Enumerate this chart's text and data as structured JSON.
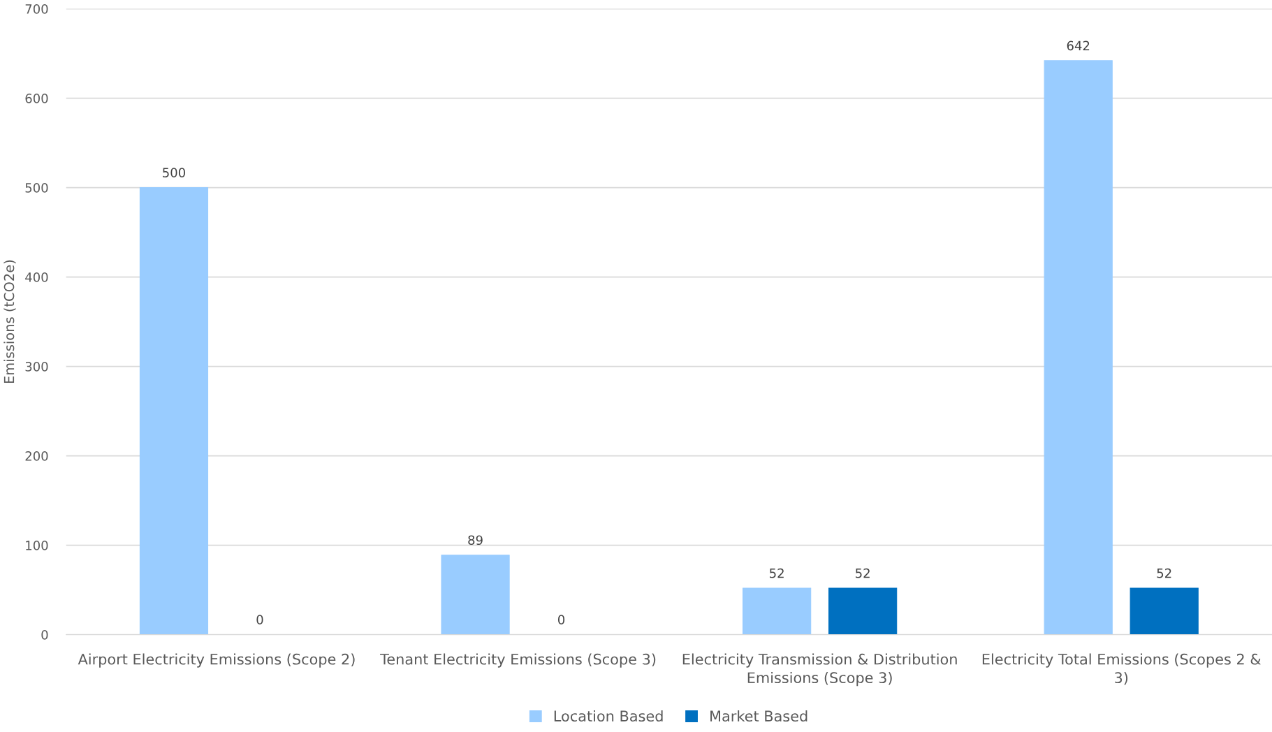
{
  "chart_data": {
    "type": "bar",
    "ylabel": "Emissions (tCO2e)",
    "categories": [
      "Airport Electricity Emissions (Scope 2)",
      "Tenant Electricity Emissions (Scope 3)",
      "Electricity Transmission & Distribution Emissions (Scope 3)",
      "Electricity Total Emissions (Scopes 2 & 3)"
    ],
    "series": [
      {
        "name": "Location Based",
        "color": "#99ccff",
        "values": [
          500,
          89,
          52,
          642
        ]
      },
      {
        "name": "Market Based",
        "color": "#0070c0",
        "values": [
          0,
          0,
          52,
          52
        ]
      }
    ],
    "ylim": [
      0,
      700
    ],
    "yticks": [
      0,
      100,
      200,
      300,
      400,
      500,
      600,
      700
    ],
    "grid": "y",
    "legend": "bottom",
    "data_labels": true
  }
}
